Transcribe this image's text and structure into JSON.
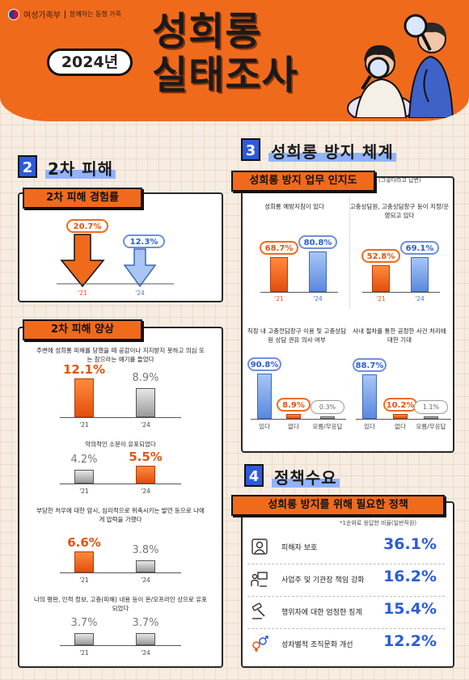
{
  "header": {
    "brand": "여성가족부",
    "slogan": "함께하는 동행 가족",
    "year": "2024년",
    "title_line1": "성희롱",
    "title_line2": "실태조사"
  },
  "section2": {
    "num": "2",
    "title": "2차 피해",
    "experience_tab": "2차 피해 경험률",
    "pattern_tab": "2차 피해 양상"
  },
  "section3": {
    "num": "3",
    "title": "성희롱 방지 체계",
    "tab": "성희롱 방지 업무 인지도",
    "note": "(그렇다라고 답변)"
  },
  "section4": {
    "num": "4",
    "title": "정책수요",
    "tab": "성희롱 방지를 위해 필요한 정책",
    "note": "*1순위로 응답한 비율(일반직원)"
  },
  "colors": {
    "orange": "#f06a1c",
    "blue": "#2c5bd9",
    "cream": "#f6ece1"
  },
  "chart_data": [
    {
      "type": "bar",
      "title": "2차 피해 경험률",
      "categories": [
        "'21",
        "'24"
      ],
      "values": [
        20.7,
        12.3
      ],
      "labels": [
        "20.7%",
        "12.3%"
      ]
    },
    {
      "type": "bar",
      "title": "2차 피해 양상",
      "groups": [
        {
          "question": "주변에 성희롱 피해를 당했을 때 공감이나 지지받지 못하고 의심 또는 참으라는 얘기를 들었다",
          "categories": [
            "'21",
            "'24"
          ],
          "values": [
            12.1,
            8.9
          ],
          "labels": [
            "12.1%",
            "8.9%"
          ]
        },
        {
          "question": "악의적인 소문이 유포되었다",
          "categories": [
            "'21",
            "'24"
          ],
          "values": [
            4.2,
            5.5
          ],
          "labels": [
            "4.2%",
            "5.5%"
          ]
        },
        {
          "question": "부당한 처우에 대한 암시, 심리적으로 위축시키는 발언 등으로 나에게 압력을 가했다",
          "categories": [
            "'21",
            "'24"
          ],
          "values": [
            6.6,
            3.8
          ],
          "labels": [
            "6.6%",
            "3.8%"
          ]
        },
        {
          "question": "나의 평판, 인적 정보, 고충(피해) 내용 등이 온/오프라인 상으로 유포되었다",
          "categories": [
            "'21",
            "'24"
          ],
          "values": [
            3.7,
            3.7
          ],
          "labels": [
            "3.7%",
            "3.7%"
          ]
        }
      ]
    },
    {
      "type": "bar",
      "title": "성희롱 방지 업무 인지도",
      "groups": [
        {
          "question": "성희롱 예방지침이 있다",
          "categories": [
            "'21",
            "'24"
          ],
          "values": [
            68.7,
            80.8
          ],
          "labels": [
            "68.7%",
            "80.8%"
          ]
        },
        {
          "question": "고충상담원, 고충상담창구 등이 지정/운영되고 있다",
          "categories": [
            "'21",
            "'24"
          ],
          "values": [
            52.8,
            69.1
          ],
          "labels": [
            "52.8%",
            "69.1%"
          ]
        }
      ]
    },
    {
      "type": "bar",
      "groups": [
        {
          "question": "직장 내 고충전담창구 이용 및 고충상담원 상담 권유 의사 여부",
          "categories": [
            "있다",
            "없다",
            "모름/무응답"
          ],
          "values": [
            90.8,
            8.9,
            0.3
          ],
          "labels": [
            "90.8%",
            "8.9%",
            "0.3%"
          ]
        },
        {
          "question": "사내 절차를 통한 공정한 사건 처리에 대한 기대",
          "categories": [
            "있다",
            "없다",
            "모름/무응답"
          ],
          "values": [
            88.7,
            10.2,
            1.1
          ],
          "labels": [
            "88.7%",
            "10.2%",
            "1.1%"
          ]
        }
      ]
    },
    {
      "type": "table",
      "title": "성희롱 방지를 위해 필요한 정책",
      "rows": [
        {
          "label": "피해자 보호",
          "value": "36.1%",
          "icon": "victim-protection-icon"
        },
        {
          "label": "사업주 및 기관장 책임 강화",
          "value": "16.2%",
          "icon": "employer-responsibility-icon"
        },
        {
          "label": "행위자에 대한 엄정한 징계",
          "value": "15.4%",
          "icon": "discipline-icon"
        },
        {
          "label": "성차별적 조직문화 개선",
          "value": "12.2%",
          "icon": "gender-symbol-icon"
        }
      ]
    }
  ]
}
